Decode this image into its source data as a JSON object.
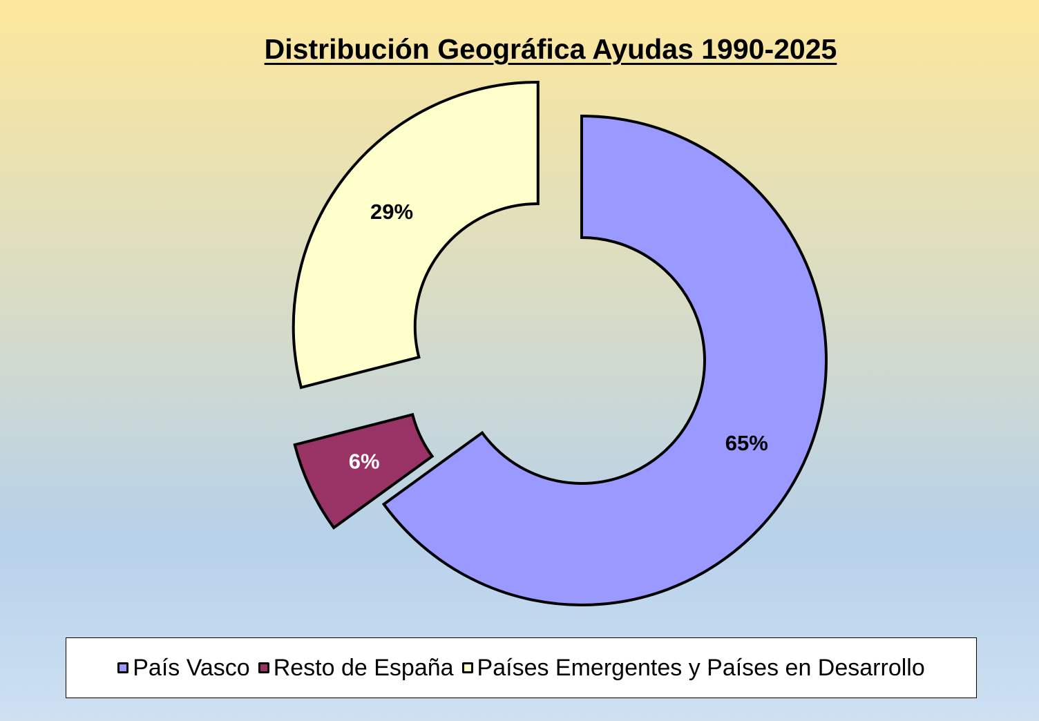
{
  "chart_data": {
    "type": "pie",
    "style": "doughnut-exploded",
    "title": "Distribución Geográfica Ayudas 1990-2025",
    "categories": [
      "País Vasco",
      "Resto de España",
      "Países Emergentes y Países en Desarrollo"
    ],
    "values": [
      65,
      6,
      29
    ],
    "data_labels": [
      "65%",
      "6%",
      "29%"
    ],
    "colors": [
      "#9999FF",
      "#993366",
      "#FFFFCC"
    ],
    "label_colors": [
      "#000000",
      "#FFFFFF",
      "#000000"
    ],
    "legend_position": "bottom"
  }
}
